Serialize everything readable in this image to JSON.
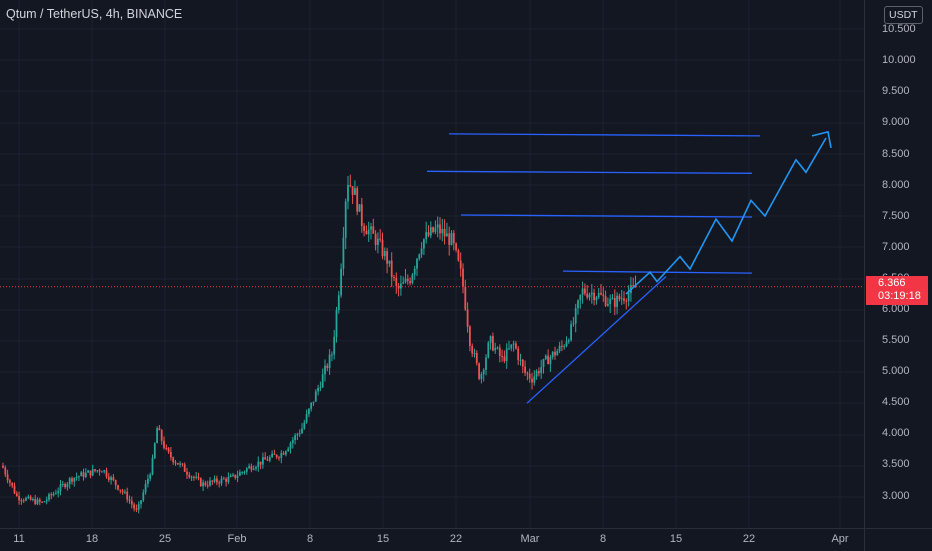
{
  "header": {
    "symbol_title": "Qtum / TetherUS, 4h, BINANCE",
    "currency": "USDT"
  },
  "colors": {
    "background": "#131722",
    "grid": "#1e222d",
    "up": "#26a69a",
    "down": "#ef5350",
    "drawing": "#2962ff",
    "projection": "#2196f3",
    "last_price": "#f23645"
  },
  "price_axis": {
    "ticks": [
      "10.500",
      "10.000",
      "9.500",
      "9.000",
      "8.500",
      "8.000",
      "7.500",
      "7.000",
      "6.500",
      "6.000",
      "5.500",
      "5.000",
      "4.500",
      "4.000",
      "3.500",
      "3.000"
    ]
  },
  "time_axis": {
    "labels": [
      "11",
      "18",
      "25",
      "Feb",
      "8",
      "15",
      "22",
      "Mar",
      "8",
      "15",
      "22",
      "Apr"
    ]
  },
  "last_price": {
    "value": "6.366",
    "countdown": "03:19:18"
  },
  "chart_data": {
    "type": "candlestick",
    "y_range": [
      2.6,
      10.7
    ],
    "price_path": [
      [
        0,
        3.5
      ],
      [
        15,
        3.0
      ],
      [
        40,
        2.9
      ],
      [
        70,
        3.3
      ],
      [
        100,
        3.45
      ],
      [
        125,
        3.0
      ],
      [
        135,
        2.75
      ],
      [
        150,
        3.5
      ],
      [
        155,
        4.1
      ],
      [
        165,
        3.7
      ],
      [
        185,
        3.4
      ],
      [
        200,
        3.2
      ],
      [
        230,
        3.3
      ],
      [
        250,
        3.5
      ],
      [
        280,
        3.7
      ],
      [
        300,
        4.1
      ],
      [
        315,
        4.7
      ],
      [
        330,
        5.3
      ],
      [
        338,
        6.5
      ],
      [
        345,
        8.1
      ],
      [
        352,
        7.9
      ],
      [
        360,
        7.4
      ],
      [
        375,
        7.1
      ],
      [
        385,
        6.8
      ],
      [
        395,
        6.3
      ],
      [
        408,
        6.5
      ],
      [
        420,
        7.1
      ],
      [
        435,
        7.3
      ],
      [
        450,
        7.1
      ],
      [
        460,
        6.5
      ],
      [
        468,
        5.5
      ],
      [
        478,
        4.9
      ],
      [
        488,
        5.5
      ],
      [
        500,
        5.2
      ],
      [
        512,
        5.45
      ],
      [
        522,
        5.0
      ],
      [
        530,
        4.9
      ],
      [
        545,
        5.2
      ],
      [
        560,
        5.4
      ],
      [
        570,
        5.7
      ],
      [
        580,
        6.3
      ],
      [
        595,
        6.25
      ],
      [
        610,
        6.1
      ],
      [
        625,
        6.25
      ],
      [
        635,
        6.37
      ]
    ],
    "last_price": 6.366,
    "annotations": {
      "resistance_levels": [
        8.8,
        8.2,
        7.5,
        6.6
      ],
      "support_trendline_from": 4.5,
      "projected_zigzag_end": 8.8
    }
  }
}
